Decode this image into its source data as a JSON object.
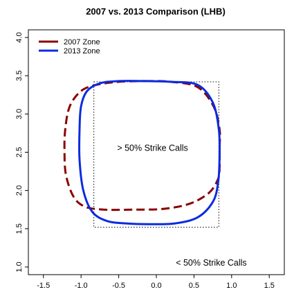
{
  "chart_data": {
    "type": "line",
    "title": "2007 vs. 2013 Comparison (LHB)",
    "xlabel": "",
    "ylabel": "",
    "xlim": [
      -1.7,
      1.7
    ],
    "ylim": [
      0.9,
      4.1
    ],
    "x_ticks": [
      -1.5,
      -1.0,
      -0.5,
      0.0,
      0.5,
      1.0,
      1.5
    ],
    "x_tick_labels": [
      "-1.5",
      "-1.0",
      "-0.5",
      "0.0",
      "0.5",
      "1.0",
      "1.5"
    ],
    "y_ticks": [
      1.0,
      1.5,
      2.0,
      2.5,
      3.0,
      3.5,
      4.0
    ],
    "y_tick_labels": [
      "1.0",
      "1.5",
      "2.0",
      "2.5",
      "3.0",
      "3.5",
      "4.0"
    ],
    "grid": false,
    "legend_position": "top-left",
    "series": [
      {
        "name": "2007 Zone",
        "color": "#8B0000",
        "dash": "dashed",
        "x": [
          -0.15,
          0.2,
          0.55,
          0.76,
          0.84,
          0.84,
          0.84,
          0.82,
          0.7,
          0.45,
          0.1,
          -0.3,
          -0.7,
          -0.95,
          -1.1,
          -1.2,
          -1.22,
          -1.21,
          -1.15,
          -1.0,
          -0.8,
          -0.5,
          -0.15
        ],
        "y": [
          3.43,
          3.42,
          3.35,
          3.1,
          2.8,
          2.55,
          2.3,
          2.15,
          1.97,
          1.83,
          1.76,
          1.75,
          1.75,
          1.79,
          1.92,
          2.2,
          2.5,
          2.8,
          3.1,
          3.3,
          3.38,
          3.42,
          3.43
        ]
      },
      {
        "name": "2013 Zone",
        "color": "#0A2BE0",
        "dash": "solid",
        "x": [
          -0.15,
          0.2,
          0.55,
          0.75,
          0.83,
          0.84,
          0.82,
          0.75,
          0.55,
          0.25,
          -0.1,
          -0.4,
          -0.65,
          -0.85,
          -0.97,
          -1.02,
          -1.02,
          -1.0,
          -0.92,
          -0.75,
          -0.5,
          -0.15
        ],
        "y": [
          3.43,
          3.42,
          3.38,
          3.15,
          2.8,
          2.45,
          2.1,
          1.85,
          1.65,
          1.57,
          1.56,
          1.57,
          1.6,
          1.72,
          2.0,
          2.4,
          2.8,
          3.1,
          3.3,
          3.4,
          3.43,
          3.43
        ]
      }
    ],
    "reference_box": {
      "x_min": -0.83,
      "x_max": 0.83,
      "y_min": 1.52,
      "y_max": 3.42,
      "style": "dotted"
    },
    "annotations": [
      {
        "text": "> 50% Strike Calls",
        "x": -0.05,
        "y": 2.55
      },
      {
        "text": "< 50% Strike Calls",
        "x": 0.73,
        "y": 1.05
      }
    ]
  }
}
